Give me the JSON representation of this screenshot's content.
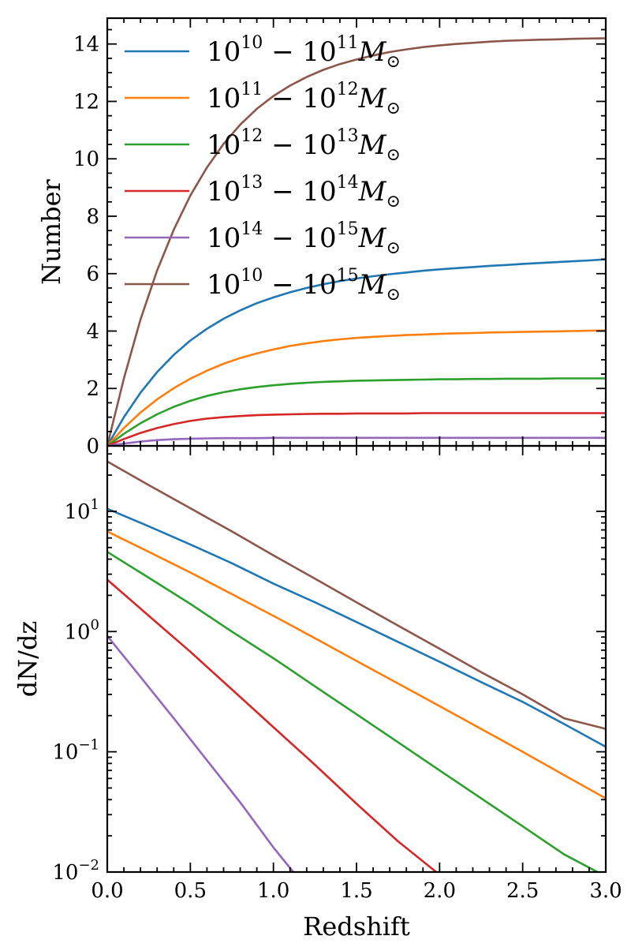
{
  "chart_data": [
    {
      "type": "line",
      "panel": "top",
      "xlabel": "",
      "ylabel": "Number",
      "xlim": [
        0,
        3
      ],
      "ylim": [
        0,
        14.9
      ],
      "yscale": "linear",
      "yticks": [
        0,
        2,
        4,
        6,
        8,
        10,
        12,
        14
      ],
      "ytick_labels": [
        "0",
        "2",
        "4",
        "6",
        "8",
        "10",
        "12",
        "14"
      ],
      "legend_position": "top-left",
      "x": [
        0,
        0.1,
        0.2,
        0.3,
        0.4,
        0.5,
        0.6,
        0.7,
        0.8,
        0.9,
        1.0,
        1.1,
        1.2,
        1.3,
        1.4,
        1.5,
        1.6,
        1.7,
        1.8,
        1.9,
        2.0,
        2.1,
        2.2,
        2.3,
        2.4,
        2.5,
        2.6,
        2.7,
        2.8,
        2.9,
        3.0
      ],
      "series": [
        {
          "name": "10^10 - 10^11 M_sun",
          "color": "#1f77b4",
          "values": [
            0,
            1.0,
            1.85,
            2.57,
            3.17,
            3.67,
            4.08,
            4.43,
            4.72,
            4.97,
            5.17,
            5.35,
            5.5,
            5.63,
            5.74,
            5.83,
            5.91,
            5.98,
            6.04,
            6.1,
            6.15,
            6.19,
            6.23,
            6.27,
            6.3,
            6.34,
            6.37,
            6.4,
            6.43,
            6.46,
            6.5
          ]
        },
        {
          "name": "10^11 - 10^12 M_sun",
          "color": "#ff7f0e",
          "values": [
            0,
            0.62,
            1.16,
            1.62,
            2.01,
            2.34,
            2.62,
            2.86,
            3.06,
            3.22,
            3.36,
            3.48,
            3.57,
            3.65,
            3.71,
            3.76,
            3.8,
            3.83,
            3.86,
            3.88,
            3.9,
            3.92,
            3.93,
            3.95,
            3.96,
            3.97,
            3.98,
            3.99,
            4.0,
            4.01,
            4.02
          ]
        },
        {
          "name": "10^12 - 10^13 M_sun",
          "color": "#2ca02c",
          "values": [
            0,
            0.42,
            0.79,
            1.1,
            1.36,
            1.57,
            1.74,
            1.87,
            1.97,
            2.05,
            2.11,
            2.16,
            2.2,
            2.23,
            2.25,
            2.27,
            2.28,
            2.29,
            2.3,
            2.31,
            2.32,
            2.32,
            2.33,
            2.33,
            2.34,
            2.34,
            2.34,
            2.35,
            2.35,
            2.35,
            2.35
          ]
        },
        {
          "name": "10^13 - 10^14 M_sun",
          "color": "#d62728",
          "values": [
            0,
            0.24,
            0.45,
            0.62,
            0.76,
            0.87,
            0.95,
            1.0,
            1.04,
            1.07,
            1.09,
            1.1,
            1.11,
            1.12,
            1.12,
            1.13,
            1.13,
            1.13,
            1.13,
            1.14,
            1.14,
            1.14,
            1.14,
            1.14,
            1.14,
            1.14,
            1.14,
            1.14,
            1.14,
            1.14,
            1.14
          ]
        },
        {
          "name": "10^14 - 10^15 M_sun",
          "color": "#9467bd",
          "values": [
            0,
            0.08,
            0.15,
            0.2,
            0.23,
            0.25,
            0.26,
            0.27,
            0.27,
            0.27,
            0.28,
            0.28,
            0.28,
            0.28,
            0.28,
            0.28,
            0.28,
            0.28,
            0.28,
            0.28,
            0.28,
            0.28,
            0.28,
            0.28,
            0.28,
            0.28,
            0.28,
            0.28,
            0.28,
            0.28,
            0.28
          ]
        },
        {
          "name": "10^10 - 10^15 M_sun",
          "color": "#8c564b",
          "values": [
            0,
            2.35,
            4.4,
            6.11,
            7.53,
            8.72,
            9.7,
            10.52,
            11.19,
            11.74,
            12.19,
            12.55,
            12.85,
            13.1,
            13.3,
            13.46,
            13.6,
            13.72,
            13.81,
            13.89,
            13.95,
            14.0,
            14.04,
            14.08,
            14.11,
            14.13,
            14.15,
            14.16,
            14.18,
            14.19,
            14.2
          ]
        }
      ]
    },
    {
      "type": "line",
      "panel": "bottom",
      "xlabel": "Redshift",
      "ylabel": "dN/dz",
      "xlim": [
        0,
        3
      ],
      "ylim": [
        0.01,
        35
      ],
      "yscale": "log",
      "xticks": [
        0,
        0.5,
        1.0,
        1.5,
        2.0,
        2.5,
        3.0
      ],
      "xtick_labels": [
        "0.0",
        "0.5",
        "1.0",
        "1.5",
        "2.0",
        "2.5",
        "3.0"
      ],
      "series": [
        {
          "name": "10^10 - 10^11 M_sun",
          "color": "#1f77b4",
          "x": [
            0,
            0.25,
            0.5,
            0.75,
            1.0,
            1.25,
            1.5,
            1.75,
            2.0,
            2.25,
            2.5,
            2.75,
            3.0
          ],
          "values": [
            10.5,
            7.5,
            5.3,
            3.7,
            2.5,
            1.75,
            1.2,
            0.82,
            0.56,
            0.38,
            0.26,
            0.17,
            0.11
          ]
        },
        {
          "name": "10^11 - 10^12 M_sun",
          "color": "#ff7f0e",
          "x": [
            0,
            0.25,
            0.5,
            0.75,
            1.0,
            1.25,
            1.5,
            1.75,
            2.0,
            2.25,
            2.5,
            2.75,
            3.0
          ],
          "values": [
            6.8,
            4.6,
            3.1,
            2.05,
            1.35,
            0.88,
            0.57,
            0.37,
            0.24,
            0.155,
            0.1,
            0.064,
            0.041
          ]
        },
        {
          "name": "10^12 - 10^13 M_sun",
          "color": "#2ca02c",
          "x": [
            0,
            0.25,
            0.5,
            0.75,
            1.0,
            1.25,
            1.5,
            1.75,
            2.0,
            2.25,
            2.5,
            2.75,
            2.95
          ],
          "values": [
            4.6,
            2.8,
            1.7,
            1.0,
            0.6,
            0.35,
            0.205,
            0.12,
            0.07,
            0.041,
            0.024,
            0.014,
            0.01
          ]
        },
        {
          "name": "10^13 - 10^14 M_sun",
          "color": "#d62728",
          "x": [
            0,
            0.25,
            0.5,
            0.75,
            1.0,
            1.25,
            1.5,
            1.75,
            1.98
          ],
          "values": [
            2.7,
            1.35,
            0.68,
            0.33,
            0.16,
            0.078,
            0.037,
            0.018,
            0.01
          ]
        },
        {
          "name": "10^14 - 10^15 M_sun",
          "color": "#9467bd",
          "x": [
            0,
            0.2,
            0.4,
            0.6,
            0.8,
            1.0,
            1.12
          ],
          "values": [
            0.92,
            0.42,
            0.19,
            0.085,
            0.038,
            0.016,
            0.01
          ]
        },
        {
          "name": "10^10 - 10^15 M_sun",
          "color": "#8c564b",
          "x": [
            0,
            0.25,
            0.5,
            0.75,
            1.0,
            1.25,
            1.5,
            1.75,
            2.0,
            2.25,
            2.5,
            2.75,
            3.0
          ],
          "values": [
            26,
            16.5,
            10.6,
            6.8,
            4.3,
            2.75,
            1.75,
            1.12,
            0.72,
            0.46,
            0.3,
            0.19,
            0.155
          ]
        }
      ]
    }
  ],
  "legend": [
    {
      "lo": "10",
      "lo_exp": "10",
      "hi": "10",
      "hi_exp": "11",
      "mass": "M",
      "sub": "⊙",
      "color": "#1f77b4"
    },
    {
      "lo": "10",
      "lo_exp": "11",
      "hi": "10",
      "hi_exp": "12",
      "mass": "M",
      "sub": "⊙",
      "color": "#ff7f0e"
    },
    {
      "lo": "10",
      "lo_exp": "12",
      "hi": "10",
      "hi_exp": "13",
      "mass": "M",
      "sub": "⊙",
      "color": "#2ca02c"
    },
    {
      "lo": "10",
      "lo_exp": "13",
      "hi": "10",
      "hi_exp": "14",
      "mass": "M",
      "sub": "⊙",
      "color": "#d62728"
    },
    {
      "lo": "10",
      "lo_exp": "14",
      "hi": "10",
      "hi_exp": "15",
      "mass": "M",
      "sub": "⊙",
      "color": "#9467bd"
    },
    {
      "lo": "10",
      "lo_exp": "10",
      "hi": "10",
      "hi_exp": "15",
      "mass": "M",
      "sub": "⊙",
      "color": "#8c564b"
    }
  ],
  "log_tick_labels": [
    {
      "base": "10",
      "exp": "1",
      "value": 10
    },
    {
      "base": "10",
      "exp": "0",
      "value": 1
    },
    {
      "base": "10",
      "exp": "−1",
      "value": 0.1
    },
    {
      "base": "10",
      "exp": "−2",
      "value": 0.01
    }
  ]
}
